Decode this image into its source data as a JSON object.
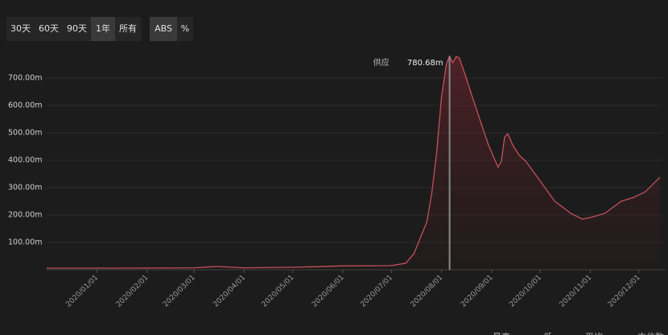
{
  "controls": {
    "range_buttons": [
      "30天",
      "60天",
      "90天",
      "1年",
      "所有"
    ],
    "selected_range": 3,
    "mode_buttons": [
      "ABS",
      "%"
    ],
    "selected_mode": 0
  },
  "footer_labels": [
    "最高",
    "低",
    "平均",
    "中位数"
  ],
  "chart_data": {
    "type": "area",
    "x": [
      "2019/12/01",
      "2020/01/15",
      "2020/03/01",
      "2020/03/15",
      "2020/04/01",
      "2020/05/01",
      "2020/06/01",
      "2020/07/01",
      "2020/07/10",
      "2020/07/15",
      "2020/07/20",
      "2020/07/23",
      "2020/07/26",
      "2020/07/29",
      "2020/08/01",
      "2020/08/04",
      "2020/08/06",
      "2020/08/08",
      "2020/08/10",
      "2020/08/12",
      "2020/08/16",
      "2020/08/20",
      "2020/08/25",
      "2020/08/30",
      "2020/09/05",
      "2020/09/07",
      "2020/09/09",
      "2020/09/11",
      "2020/09/14",
      "2020/09/18",
      "2020/09/22",
      "2020/10/01",
      "2020/10/10",
      "2020/10/20",
      "2020/10/27",
      "2020/11/01",
      "2020/11/10",
      "2020/11/20",
      "2020/11/28",
      "2020/12/05",
      "2020/12/14"
    ],
    "series": [
      {
        "name": "供应",
        "color": "#c4505a",
        "values": [
          6,
          6,
          7,
          12,
          7,
          9,
          14,
          15,
          24,
          59,
          132,
          176,
          280,
          426,
          632,
          750,
          780.68,
          756,
          779,
          774,
          706,
          632,
          544,
          456,
          374,
          397,
          485,
          497,
          456,
          418,
          397,
          324,
          250,
          206,
          185,
          191,
          206,
          250,
          265,
          285,
          338
        ]
      }
    ],
    "xlim": [
      "2019/12/01",
      "2020/12/15"
    ],
    "xticks": [
      "2020/01/01",
      "2020/02/01",
      "2020/03/01",
      "2020/04/01",
      "2020/05/01",
      "2020/06/01",
      "2020/07/01",
      "2020/08/01",
      "2020/09/01",
      "2020/10/01",
      "2020/11/01",
      "2020/12/01"
    ],
    "ylim": [
      0,
      800
    ],
    "yticks": [
      {
        "value": 100,
        "label": "100.00m"
      },
      {
        "value": 200,
        "label": "200.00m"
      },
      {
        "value": 300,
        "label": "300.00m"
      },
      {
        "value": 400,
        "label": "400.00m"
      },
      {
        "value": 500,
        "label": "500.00m"
      },
      {
        "value": 600,
        "label": "600.00m"
      },
      {
        "value": 700,
        "label": "700.00m"
      }
    ],
    "grid": true,
    "tooltip": {
      "label": "供应",
      "x": "2020/08/06",
      "value": 780.68,
      "value_label": "780.68m"
    }
  }
}
